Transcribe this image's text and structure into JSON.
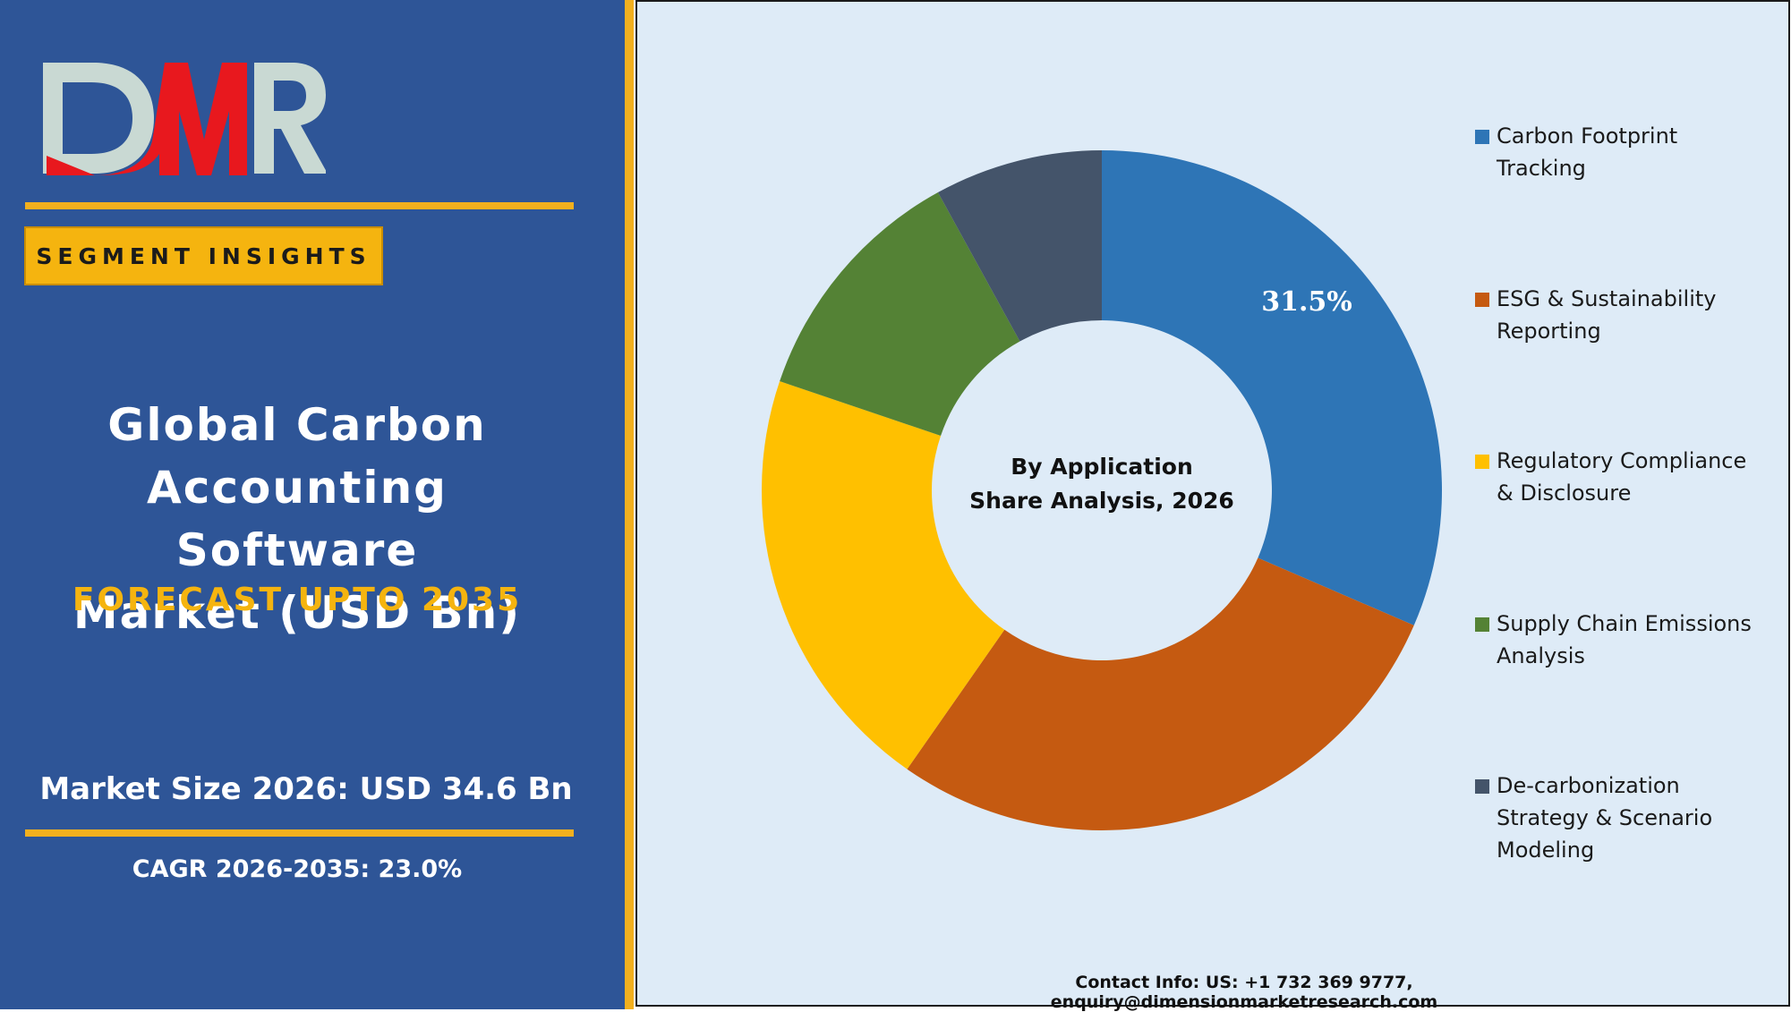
{
  "logo": {
    "text": "DMR",
    "colors": {
      "d_m": "#e8181e",
      "m_r": "#c9d9d3"
    }
  },
  "badge": {
    "label": "SEGMENT INSIGHTS"
  },
  "title": {
    "lines": [
      "Global Carbon",
      "Accounting Software",
      "Market (USD Bn)"
    ],
    "forecast": "FORECAST UPTO 2035"
  },
  "stats": {
    "market_size": "Market Size 2026: USD 34.6 Bn",
    "cagr": "CAGR 2026-2035: 23.0%"
  },
  "colors": {
    "left_panel": "#2e5597",
    "accent": "#f2b01e",
    "chart_bg": "#deebf7"
  },
  "chart_data": {
    "type": "pie",
    "donut": true,
    "center_title": [
      "By Application",
      "Share Analysis, 2026"
    ],
    "slices": [
      {
        "label": "Carbon Footprint Tracking",
        "value": 31.5,
        "color": "#2e75b6",
        "data_label": "31.5%"
      },
      {
        "label": "ESG & Sustainability Reporting",
        "value": 28.2,
        "color": "#c55a11",
        "data_label": ""
      },
      {
        "label": "Regulatory Compliance & Disclosure",
        "value": 20.5,
        "color": "#ffc000",
        "data_label": ""
      },
      {
        "label": "Supply Chain Emissions Analysis",
        "value": 11.8,
        "color": "#548235",
        "data_label": ""
      },
      {
        "label": "De-carbonization Strategy & Scenario Modeling",
        "value": 8.0,
        "color": "#44546a",
        "data_label": ""
      }
    ],
    "legend_position": "right",
    "legend": [
      {
        "lines": [
          "Carbon Footprint",
          "Tracking"
        ],
        "color": "#2e75b6"
      },
      {
        "lines": [
          "ESG & Sustainability",
          "Reporting"
        ],
        "color": "#c55a11"
      },
      {
        "lines": [
          "Regulatory Compliance",
          "& Disclosure"
        ],
        "color": "#ffc000"
      },
      {
        "lines": [
          "Supply Chain Emissions",
          "Analysis"
        ],
        "color": "#548235"
      },
      {
        "lines": [
          "De-carbonization",
          "Strategy & Scenario",
          "Modeling"
        ],
        "color": "#44546a"
      }
    ]
  },
  "contact": "Contact Info: US: +1 732 369 9777, enquiry@dimensionmarketresearch.com"
}
